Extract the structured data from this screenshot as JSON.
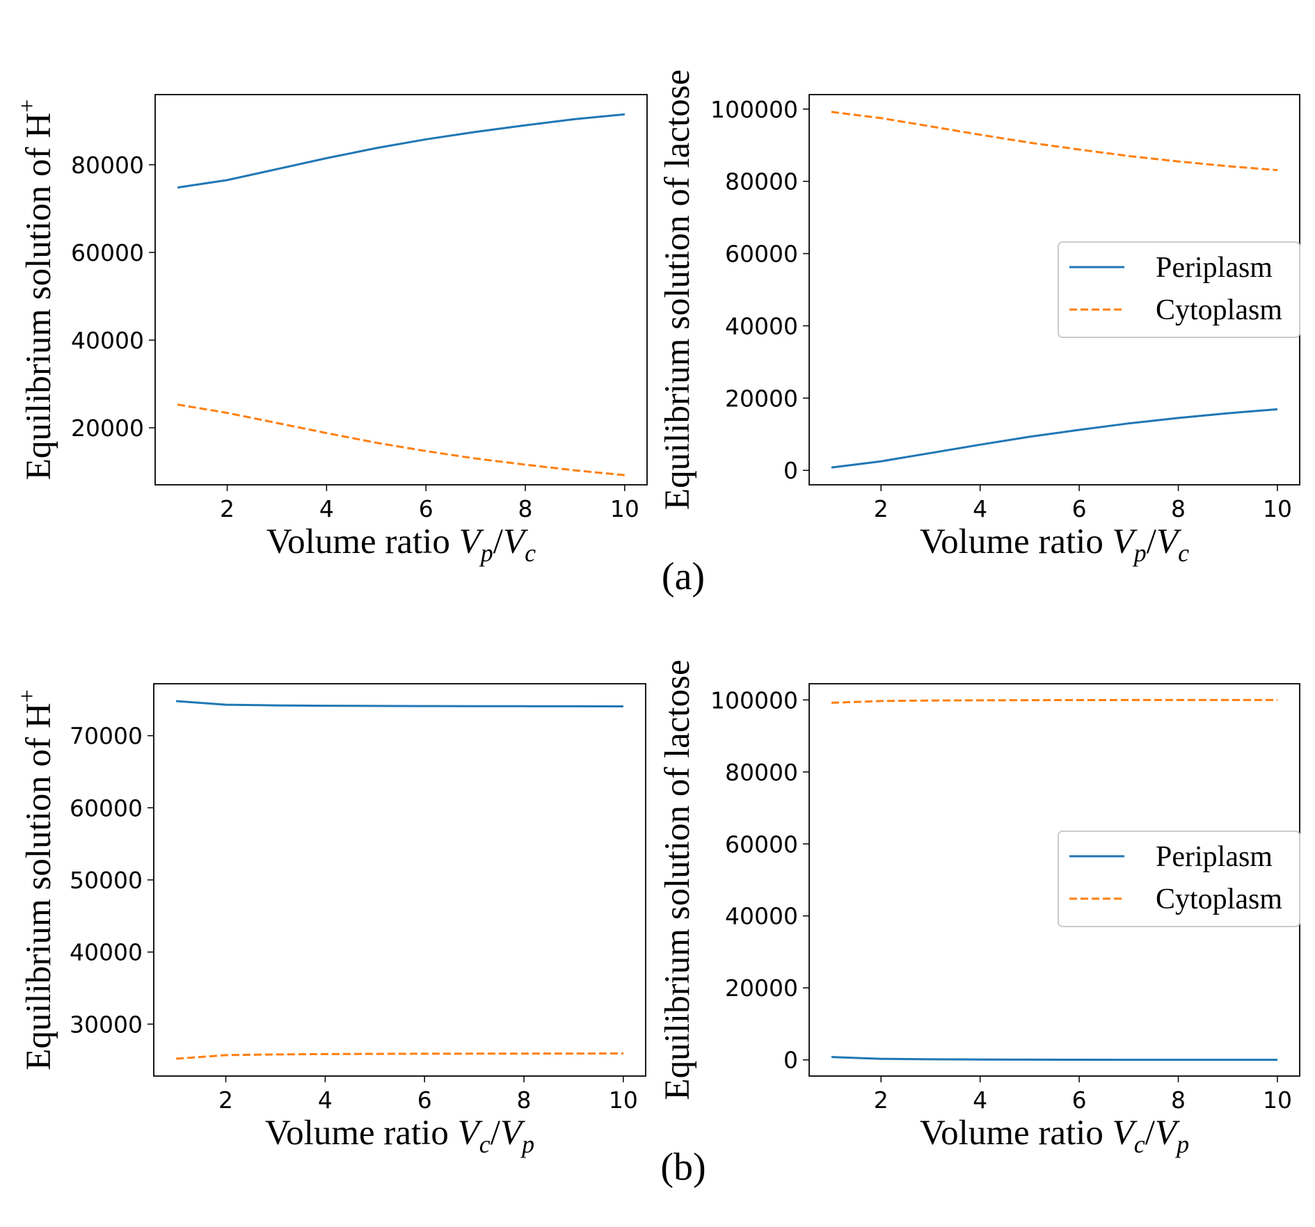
{
  "figure": {
    "panel_labels": [
      "(a)",
      "(b)"
    ]
  },
  "colors": {
    "periplasm": "#1f77b4",
    "cytoplasm": "#ff7f0e"
  },
  "chart_data": [
    {
      "type": "line",
      "panel": "(a)",
      "ylabel": "Equilibrium solution of H",
      "ylabel_sup": "+",
      "xlabel": "Volume ratio ",
      "xlabel_math": [
        "V",
        "p",
        "/",
        "V",
        "c"
      ],
      "x": [
        1,
        2,
        3,
        4,
        5,
        6,
        7,
        8,
        9,
        10
      ],
      "xlim": [
        0.55,
        10.45
      ],
      "ylim": [
        7000,
        96000
      ],
      "xticks": [
        2,
        4,
        6,
        8,
        10
      ],
      "yticks": [
        20000,
        40000,
        60000,
        80000
      ],
      "legend": null,
      "series": [
        {
          "name": "Periplasm",
          "style": "solid",
          "values": [
            74800,
            76500,
            79000,
            81500,
            83800,
            85800,
            87500,
            89000,
            90400,
            91500
          ]
        },
        {
          "name": "Cytoplasm",
          "style": "dashed",
          "values": [
            25300,
            23400,
            21100,
            18800,
            16600,
            14700,
            13000,
            11600,
            10300,
            9200
          ]
        }
      ]
    },
    {
      "type": "line",
      "panel": "(a)",
      "ylabel": "Equilibrium solution of lactose",
      "ylabel_sup": "",
      "xlabel": "Volume ratio ",
      "xlabel_math": [
        "V",
        "p",
        "/",
        "V",
        "c"
      ],
      "x": [
        1,
        2,
        3,
        4,
        5,
        6,
        7,
        8,
        9,
        10
      ],
      "xlim": [
        0.55,
        10.45
      ],
      "ylim": [
        -4000,
        104000
      ],
      "xticks": [
        2,
        4,
        6,
        8,
        10
      ],
      "yticks": [
        0,
        20000,
        40000,
        60000,
        80000,
        100000
      ],
      "legend": {
        "position": "center-right",
        "entries": [
          "Periplasm",
          "Cytoplasm"
        ]
      },
      "series": [
        {
          "name": "Periplasm",
          "style": "solid",
          "values": [
            800,
            2500,
            4800,
            7100,
            9300,
            11200,
            13000,
            14500,
            15800,
            16900
          ]
        },
        {
          "name": "Cytoplasm",
          "style": "dashed",
          "values": [
            99200,
            97500,
            95200,
            92900,
            90700,
            88800,
            87000,
            85500,
            84200,
            83100
          ]
        }
      ]
    },
    {
      "type": "line",
      "panel": "(b)",
      "ylabel": "Equilibrium solution of H",
      "ylabel_sup": "+",
      "xlabel": "Volume ratio ",
      "xlabel_math": [
        "V",
        "c",
        "/",
        "V",
        "p"
      ],
      "x": [
        1,
        2,
        3,
        4,
        5,
        6,
        7,
        8,
        9,
        10
      ],
      "xlim": [
        0.55,
        10.45
      ],
      "ylim": [
        22800,
        77200
      ],
      "xticks": [
        2,
        4,
        6,
        8,
        10
      ],
      "yticks": [
        30000,
        40000,
        50000,
        60000,
        70000
      ],
      "legend": null,
      "series": [
        {
          "name": "Periplasm",
          "style": "solid",
          "values": [
            74800,
            74300,
            74200,
            74150,
            74120,
            74100,
            74090,
            74080,
            74075,
            74070
          ]
        },
        {
          "name": "Cytoplasm",
          "style": "dashed",
          "values": [
            25200,
            25700,
            25800,
            25850,
            25880,
            25900,
            25910,
            25920,
            25925,
            25930
          ]
        }
      ]
    },
    {
      "type": "line",
      "panel": "(b)",
      "ylabel": "Equilibrium solution of lactose",
      "ylabel_sup": "",
      "xlabel": "Volume ratio ",
      "xlabel_math": [
        "V",
        "c",
        "/",
        "V",
        "p"
      ],
      "x": [
        1,
        2,
        3,
        4,
        5,
        6,
        7,
        8,
        9,
        10
      ],
      "xlim": [
        0.55,
        10.45
      ],
      "ylim": [
        -4500,
        104500
      ],
      "xticks": [
        2,
        4,
        6,
        8,
        10
      ],
      "yticks": [
        0,
        20000,
        40000,
        60000,
        80000,
        100000
      ],
      "legend": {
        "position": "center-right",
        "entries": [
          "Periplasm",
          "Cytoplasm"
        ]
      },
      "series": [
        {
          "name": "Periplasm",
          "style": "solid",
          "values": [
            800,
            300,
            150,
            90,
            60,
            40,
            30,
            25,
            20,
            15
          ]
        },
        {
          "name": "Cytoplasm",
          "style": "dashed",
          "values": [
            99200,
            99700,
            99850,
            99910,
            99940,
            99960,
            99970,
            99975,
            99980,
            99985
          ]
        }
      ]
    }
  ]
}
